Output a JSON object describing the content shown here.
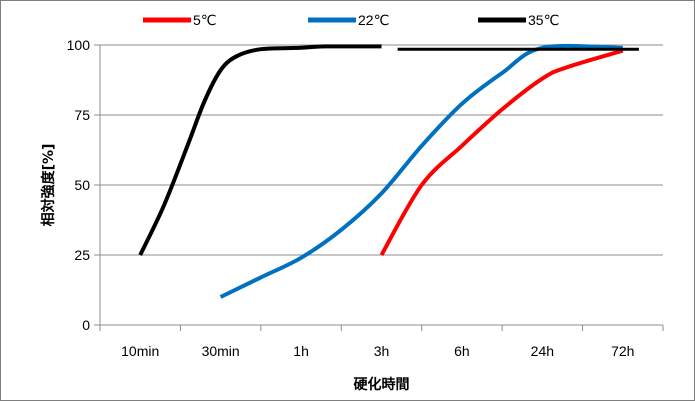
{
  "chart_data": {
    "type": "line",
    "categories": [
      "10min",
      "30min",
      "1h",
      "3h",
      "6h",
      "24h",
      "72h"
    ],
    "xlabel": "硬化時間",
    "ylabel": "相対強度[%]",
    "ylim": [
      0,
      100
    ],
    "yticks": [
      0,
      25,
      50,
      75,
      100
    ],
    "grid": true,
    "legend_position": "top",
    "series": [
      {
        "name": "5℃",
        "color": "#ff0000",
        "points": [
          [
            3,
            25
          ],
          [
            3.5,
            50
          ],
          [
            4,
            64
          ],
          [
            4.5,
            77
          ],
          [
            5,
            88
          ],
          [
            5.3,
            92
          ],
          [
            6,
            98
          ]
        ]
      },
      {
        "name": "22℃",
        "color": "#0070c0",
        "points": [
          [
            1,
            10
          ],
          [
            1.5,
            17
          ],
          [
            2,
            24
          ],
          [
            2.5,
            34
          ],
          [
            3,
            47
          ],
          [
            3.5,
            64
          ],
          [
            4,
            79
          ],
          [
            4.5,
            90
          ],
          [
            5,
            99
          ],
          [
            6,
            99
          ]
        ]
      },
      {
        "name": "35℃",
        "color": "#000000",
        "points": [
          [
            0,
            25
          ],
          [
            0.3,
            43
          ],
          [
            0.6,
            65
          ],
          [
            0.8,
            80
          ],
          [
            1,
            91
          ],
          [
            1.2,
            96
          ],
          [
            1.5,
            98.5
          ],
          [
            2,
            99
          ],
          [
            2.3,
            99.5
          ],
          [
            3,
            99.5
          ]
        ],
        "points_segment2": [
          [
            3.2,
            98.5
          ],
          [
            6.2,
            98.5
          ]
        ]
      }
    ]
  }
}
